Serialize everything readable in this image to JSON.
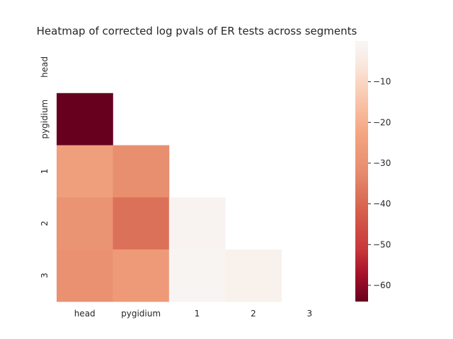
{
  "chart_data": {
    "type": "heatmap",
    "title": "Heatmap of corrected log pvals of ER tests across segments",
    "xlabel": "",
    "ylabel": "",
    "x_categories": [
      "head",
      "pygidium",
      "1",
      "2",
      "3"
    ],
    "y_categories": [
      "head",
      "pygidium",
      "1",
      "2",
      "3"
    ],
    "mask": "upper triangle including diagonal",
    "values": [
      [
        null,
        null,
        null,
        null,
        null
      ],
      [
        -64,
        null,
        null,
        null,
        null
      ],
      [
        -25,
        -31,
        null,
        null,
        null
      ],
      [
        -29,
        -38,
        -1.5,
        null,
        null
      ],
      [
        -30,
        -27,
        -1.2,
        -2.5,
        null
      ]
    ],
    "colorbar": {
      "colormap": "RdBu_r (lower half)",
      "range": [
        -64,
        0
      ],
      "ticks": [
        "−10",
        "−20",
        "−30",
        "−40",
        "−50",
        "−60"
      ],
      "tick_values": [
        -10,
        -20,
        -30,
        -40,
        -50,
        -60
      ]
    }
  }
}
